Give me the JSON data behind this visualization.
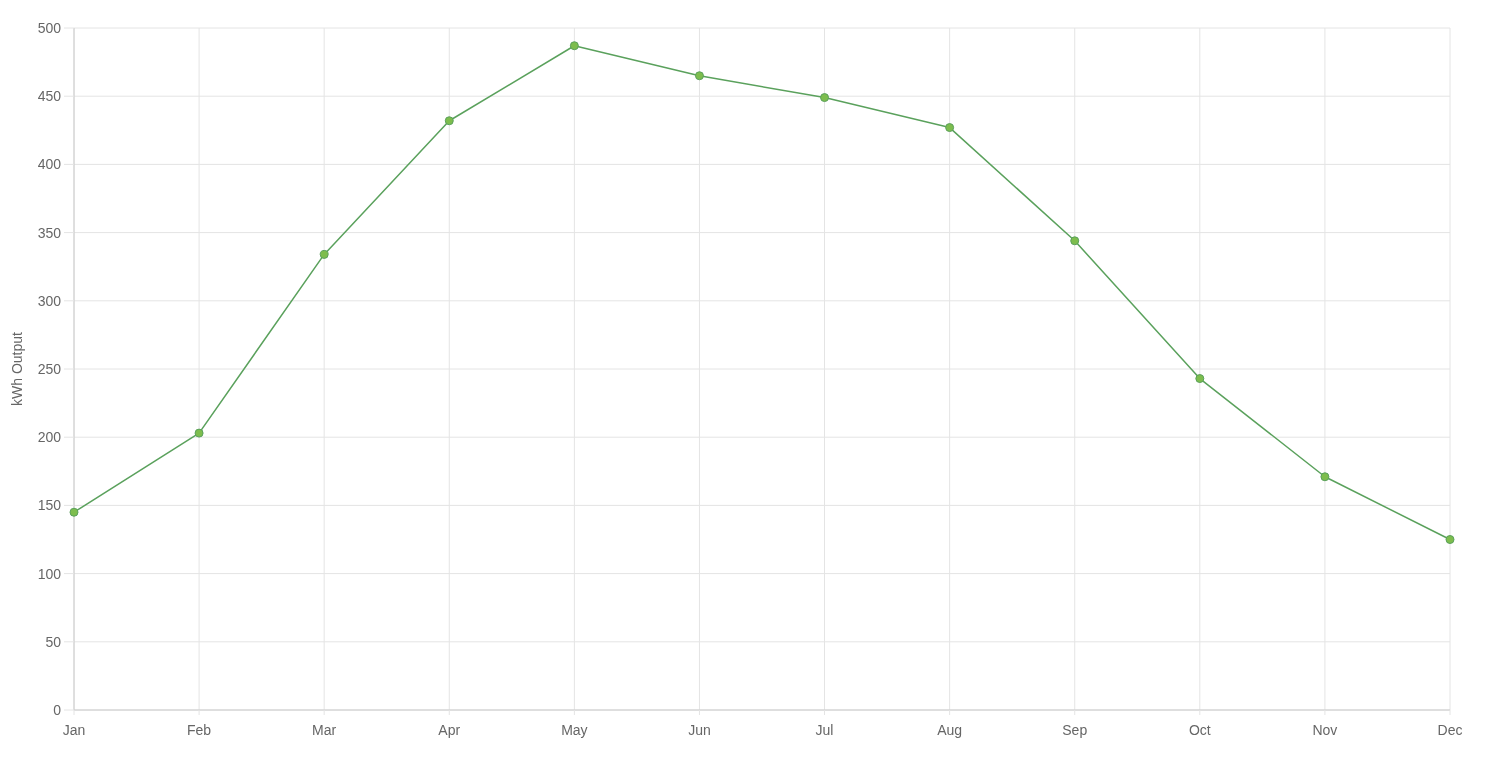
{
  "chart_data": {
    "type": "line",
    "ylabel": "kWh Output",
    "categories": [
      "Jan",
      "Feb",
      "Mar",
      "Apr",
      "May",
      "Jun",
      "Jul",
      "Aug",
      "Sep",
      "Oct",
      "Nov",
      "Dec"
    ],
    "series": [
      {
        "color": "#5aa15c",
        "values": [
          145,
          203,
          334,
          432,
          487,
          465,
          449,
          427,
          344,
          243,
          171,
          125
        ]
      }
    ],
    "ylim": [
      0,
      500
    ],
    "yticks": [
      0,
      50,
      100,
      150,
      200,
      250,
      300,
      350,
      400,
      450,
      500
    ],
    "grid": true,
    "marker": "circle",
    "line_style": "solid"
  }
}
